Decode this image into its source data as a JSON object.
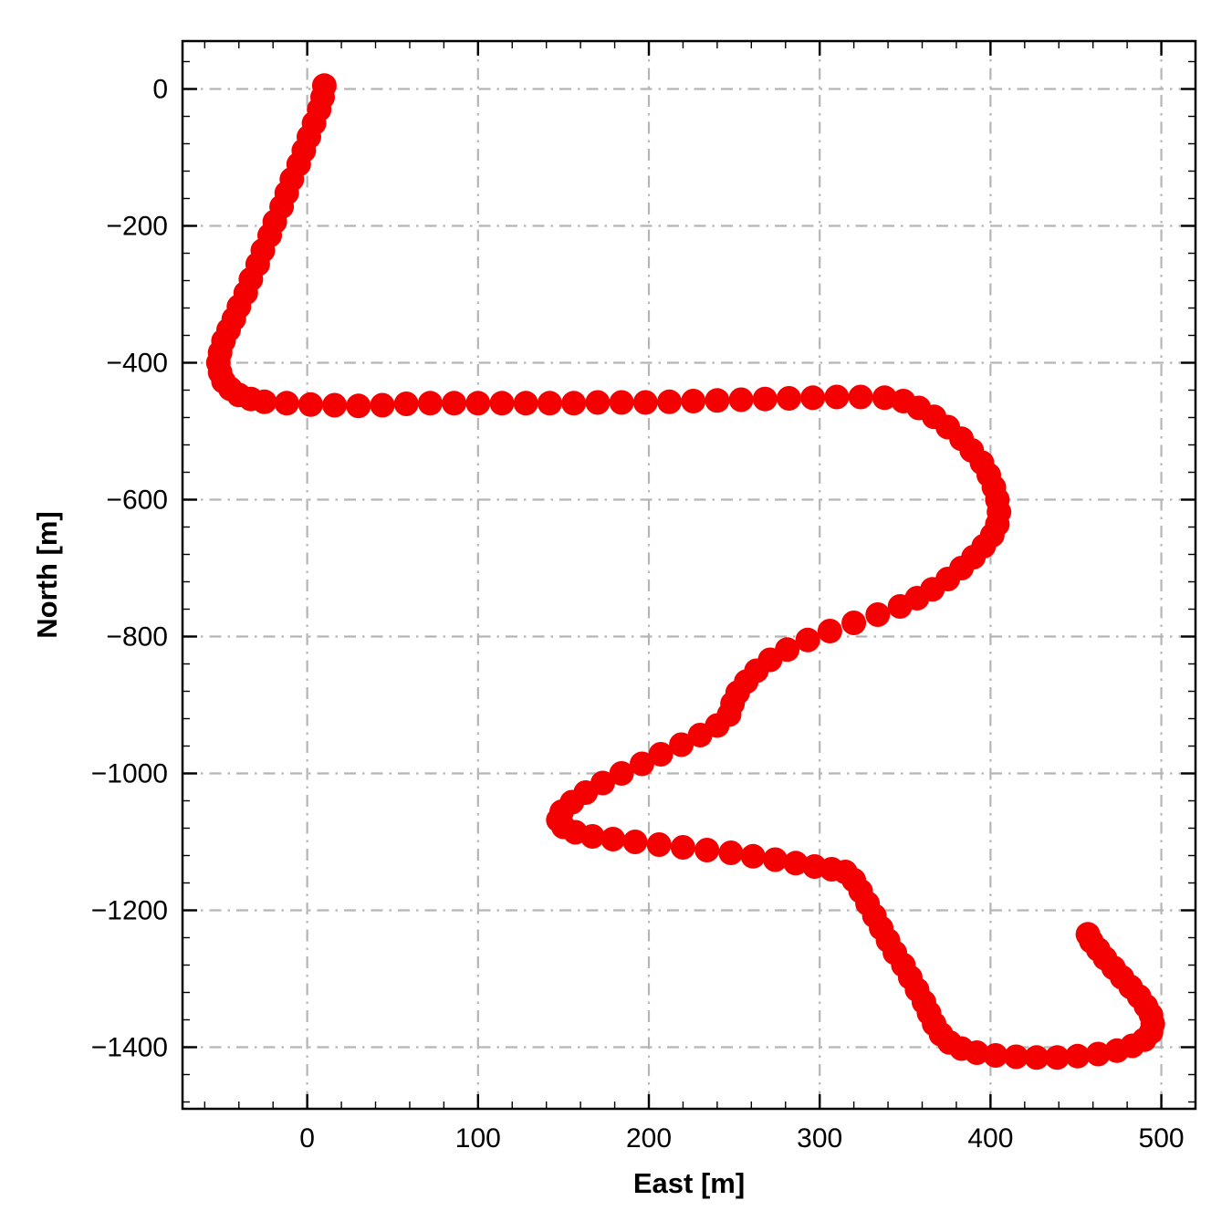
{
  "chart_data": {
    "type": "scatter",
    "title": "",
    "xlabel": "East [m]",
    "ylabel": "North [m]",
    "xlim": [
      -73,
      520
    ],
    "ylim": [
      -1490,
      70
    ],
    "x_ticks": [
      0,
      100,
      200,
      300,
      400,
      500
    ],
    "x_tick_labels": [
      "0",
      "100",
      "200",
      "300",
      "400",
      "500"
    ],
    "y_ticks": [
      0,
      -200,
      -400,
      -600,
      -800,
      -1000,
      -1200,
      -1400
    ],
    "y_tick_labels": [
      "0",
      "−200",
      "−400",
      "−600",
      "−800",
      "−1000",
      "−1200",
      "−1400"
    ],
    "x_minor_step": 20,
    "y_minor_step": 40,
    "grid": true,
    "grid_style": "dash-dot",
    "legend": "none",
    "marker_color": "#f40000",
    "marker_radius_px": 13.5,
    "axis_color": "#000000",
    "grid_color": "#b5b5b5",
    "series_name": "vehicle-trajectory",
    "points": [
      [
        10,
        5
      ],
      [
        9,
        -12
      ],
      [
        7,
        -30
      ],
      [
        4,
        -50
      ],
      [
        1,
        -70
      ],
      [
        -2,
        -90
      ],
      [
        -5,
        -110
      ],
      [
        -9,
        -132
      ],
      [
        -12,
        -152
      ],
      [
        -15,
        -172
      ],
      [
        -19,
        -194
      ],
      [
        -22,
        -214
      ],
      [
        -26,
        -236
      ],
      [
        -29,
        -256
      ],
      [
        -33,
        -278
      ],
      [
        -36,
        -298
      ],
      [
        -40,
        -318
      ],
      [
        -43,
        -336
      ],
      [
        -46,
        -352
      ],
      [
        -49,
        -368
      ],
      [
        -51,
        -385
      ],
      [
        -52,
        -400
      ],
      [
        -51,
        -414
      ],
      [
        -49,
        -427
      ],
      [
        -45,
        -438
      ],
      [
        -40,
        -447
      ],
      [
        -33,
        -453
      ],
      [
        -25,
        -457
      ],
      [
        -12,
        -459
      ],
      [
        2,
        -461
      ],
      [
        16,
        -462
      ],
      [
        30,
        -463
      ],
      [
        44,
        -462
      ],
      [
        58,
        -460
      ],
      [
        72,
        -459
      ],
      [
        86,
        -459
      ],
      [
        100,
        -459
      ],
      [
        114,
        -459
      ],
      [
        128,
        -459
      ],
      [
        142,
        -459
      ],
      [
        156,
        -459
      ],
      [
        170,
        -458
      ],
      [
        184,
        -458
      ],
      [
        198,
        -458
      ],
      [
        212,
        -457
      ],
      [
        226,
        -456
      ],
      [
        240,
        -455
      ],
      [
        254,
        -454
      ],
      [
        268,
        -453
      ],
      [
        282,
        -452
      ],
      [
        296,
        -451
      ],
      [
        310,
        -450
      ],
      [
        324,
        -450
      ],
      [
        338,
        -451
      ],
      [
        349,
        -456
      ],
      [
        358,
        -466
      ],
      [
        367,
        -479
      ],
      [
        375,
        -494
      ],
      [
        383,
        -511
      ],
      [
        389,
        -528
      ],
      [
        395,
        -546
      ],
      [
        399,
        -564
      ],
      [
        402,
        -582
      ],
      [
        404,
        -600
      ],
      [
        405,
        -618
      ],
      [
        404,
        -636
      ],
      [
        401,
        -652
      ],
      [
        396,
        -668
      ],
      [
        390,
        -684
      ],
      [
        383,
        -700
      ],
      [
        375,
        -716
      ],
      [
        366,
        -731
      ],
      [
        357,
        -744
      ],
      [
        347,
        -756
      ],
      [
        334,
        -768
      ],
      [
        320,
        -780
      ],
      [
        306,
        -792
      ],
      [
        293,
        -805
      ],
      [
        281,
        -819
      ],
      [
        271,
        -834
      ],
      [
        263,
        -850
      ],
      [
        257,
        -866
      ],
      [
        252,
        -882
      ],
      [
        249,
        -898
      ],
      [
        247,
        -914
      ],
      [
        240,
        -930
      ],
      [
        230,
        -944
      ],
      [
        219,
        -958
      ],
      [
        207,
        -972
      ],
      [
        196,
        -986
      ],
      [
        184,
        -1000
      ],
      [
        173,
        -1014
      ],
      [
        163,
        -1028
      ],
      [
        155,
        -1042
      ],
      [
        149,
        -1056
      ],
      [
        147,
        -1068
      ],
      [
        150,
        -1078
      ],
      [
        157,
        -1086
      ],
      [
        167,
        -1092
      ],
      [
        179,
        -1096
      ],
      [
        192,
        -1100
      ],
      [
        206,
        -1104
      ],
      [
        220,
        -1108
      ],
      [
        234,
        -1112
      ],
      [
        248,
        -1116
      ],
      [
        261,
        -1121
      ],
      [
        274,
        -1126
      ],
      [
        286,
        -1131
      ],
      [
        297,
        -1136
      ],
      [
        307,
        -1140
      ],
      [
        315,
        -1144
      ],
      [
        320,
        -1156
      ],
      [
        324,
        -1172
      ],
      [
        328,
        -1190
      ],
      [
        332,
        -1208
      ],
      [
        336,
        -1226
      ],
      [
        340,
        -1244
      ],
      [
        344,
        -1262
      ],
      [
        349,
        -1280
      ],
      [
        353,
        -1298
      ],
      [
        357,
        -1316
      ],
      [
        361,
        -1334
      ],
      [
        364,
        -1350
      ],
      [
        367,
        -1366
      ],
      [
        371,
        -1381
      ],
      [
        376,
        -1393
      ],
      [
        383,
        -1402
      ],
      [
        392,
        -1408
      ],
      [
        403,
        -1412
      ],
      [
        415,
        -1414
      ],
      [
        427,
        -1415
      ],
      [
        439,
        -1415
      ],
      [
        451,
        -1413
      ],
      [
        463,
        -1410
      ],
      [
        474,
        -1405
      ],
      [
        483,
        -1398
      ],
      [
        490,
        -1389
      ],
      [
        494,
        -1378
      ],
      [
        495,
        -1366
      ],
      [
        494,
        -1353
      ],
      [
        491,
        -1340
      ],
      [
        487,
        -1326
      ],
      [
        482,
        -1312
      ],
      [
        477,
        -1298
      ],
      [
        472,
        -1284
      ],
      [
        467,
        -1270
      ],
      [
        463,
        -1257
      ],
      [
        459,
        -1245
      ],
      [
        457,
        -1235
      ]
    ]
  }
}
